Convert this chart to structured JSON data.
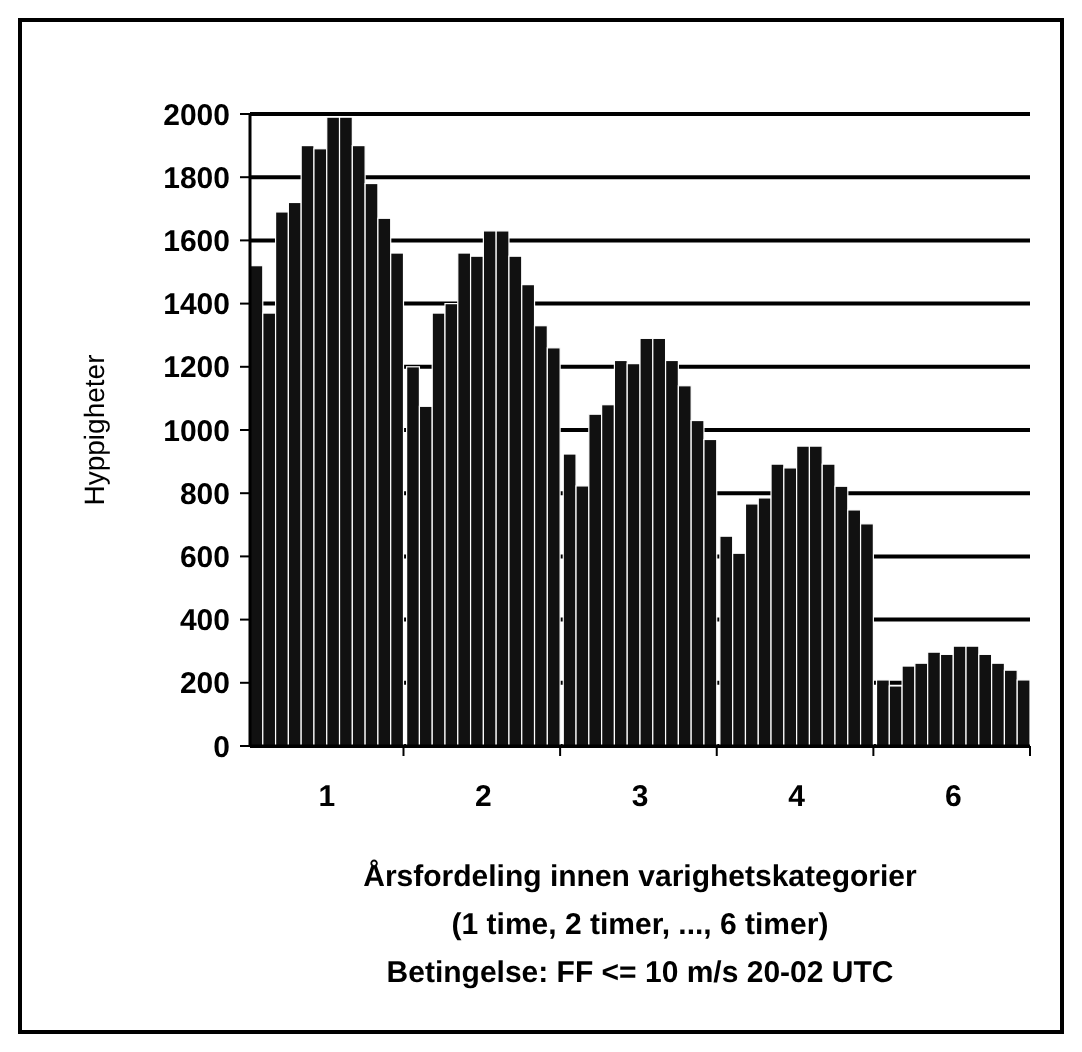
{
  "chart_data": {
    "type": "bar",
    "categories": [
      "1",
      "2",
      "3",
      "4",
      "6"
    ],
    "series": [
      {
        "color": "#111111",
        "values": [
          1520,
          1200,
          924,
          664,
          209
        ]
      },
      {
        "color": "#111111",
        "values": [
          1370,
          1075,
          823,
          610,
          190
        ]
      },
      {
        "color": "#111111",
        "values": [
          1690,
          1370,
          1050,
          766,
          253
        ]
      },
      {
        "color": "#111111",
        "values": [
          1720,
          1400,
          1080,
          785,
          262
        ]
      },
      {
        "color": "#111111",
        "values": [
          1900,
          1560,
          1220,
          892,
          297
        ]
      },
      {
        "color": "#111111",
        "values": [
          1890,
          1550,
          1210,
          880,
          290
        ]
      },
      {
        "color": "#111111",
        "values": [
          1990,
          1630,
          1290,
          949,
          316
        ]
      },
      {
        "color": "#111111",
        "values": [
          1990,
          1630,
          1290,
          949,
          316
        ]
      },
      {
        "color": "#111111",
        "values": [
          1900,
          1550,
          1220,
          892,
          290
        ]
      },
      {
        "color": "#111111",
        "values": [
          1780,
          1460,
          1140,
          822,
          262
        ]
      },
      {
        "color": "#111111",
        "values": [
          1670,
          1330,
          1030,
          747,
          240
        ]
      },
      {
        "color": "#111111",
        "values": [
          1560,
          1260,
          970,
          703,
          209
        ]
      }
    ],
    "ylabel": "Hyppigheter",
    "xlabel": "Årsfordeling innen varighetskategorier\n(1 time, 2 timer, ..., 6 timer)\nBetingelse: FF <= 10 m/s 20-02 UTC",
    "ylim": [
      0,
      2000
    ],
    "yticks": [
      0,
      200,
      400,
      600,
      800,
      1000,
      1200,
      1400,
      1600,
      1800,
      2000
    ],
    "grid": "y"
  }
}
